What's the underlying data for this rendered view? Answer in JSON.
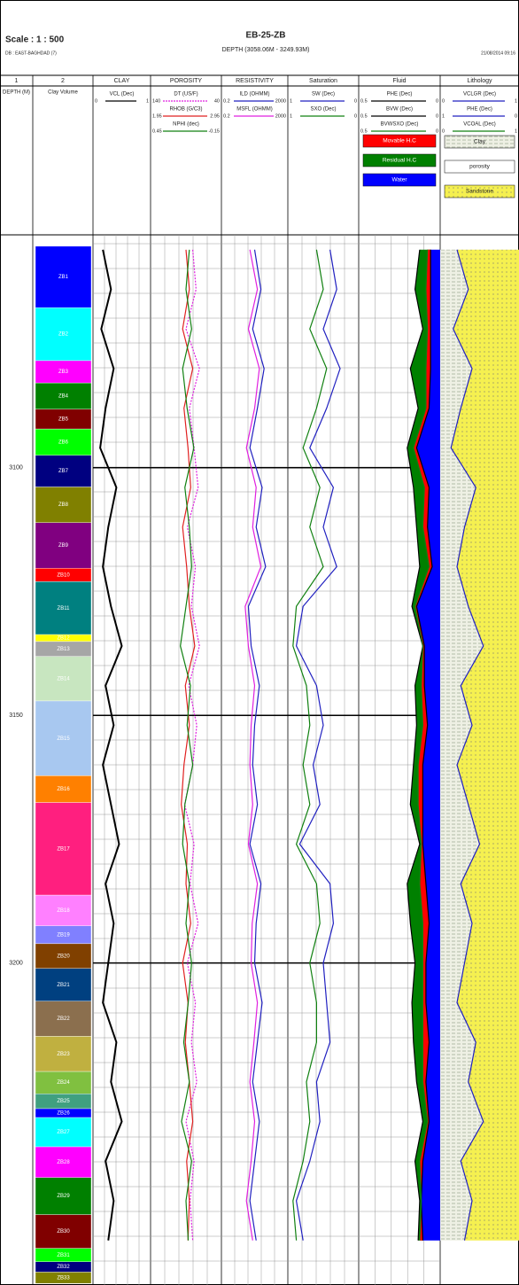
{
  "chart_data": {
    "type": "well-log",
    "scale": "Scale : 1 : 500",
    "title": "EB-25-ZB",
    "subtitle": "DEPTH (3058.06M - 3249.93M)",
    "database": "DB : EAST-BAGHDAD (7)",
    "date": "21/08/2014 09:16",
    "ylim": [
      3053,
      3265
    ],
    "yticks": [
      3100,
      3150,
      3200
    ],
    "depth": [
      3056,
      3064,
      3072,
      3080,
      3088,
      3096,
      3104,
      3112,
      3120,
      3128,
      3136,
      3144,
      3152,
      3160,
      3168,
      3176,
      3184,
      3192,
      3200,
      3208,
      3216,
      3224,
      3232,
      3240,
      3248,
      3256
    ],
    "zones": [
      {
        "name": "ZB1",
        "color": "#0000ff",
        "top": 3055.3,
        "base": 3067.7
      },
      {
        "name": "ZB2",
        "color": "#00ffff",
        "top": 3067.7,
        "base": 3078.4
      },
      {
        "name": "ZB3",
        "color": "#ff00ff",
        "top": 3078.4,
        "base": 3082.9
      },
      {
        "name": "ZB4",
        "color": "#008000",
        "top": 3082.9,
        "base": 3088.2
      },
      {
        "name": "ZB5",
        "color": "#800000",
        "top": 3088.2,
        "base": 3092.2
      },
      {
        "name": "ZB6",
        "color": "#00ff00",
        "top": 3092.2,
        "base": 3097.5
      },
      {
        "name": "ZB7",
        "color": "#000080",
        "top": 3097.5,
        "base": 3103.9
      },
      {
        "name": "ZB8",
        "color": "#808000",
        "top": 3103.9,
        "base": 3111.1
      },
      {
        "name": "ZB9",
        "color": "#800080",
        "top": 3111.1,
        "base": 3120.3
      },
      {
        "name": "ZB10",
        "color": "#ff0000",
        "top": 3120.3,
        "base": 3123.0
      },
      {
        "name": "ZB11",
        "color": "#008080",
        "top": 3123.0,
        "base": 3133.7
      },
      {
        "name": "ZB12",
        "color": "#ffff00",
        "top": 3133.7,
        "base": 3135.1
      },
      {
        "name": "ZB13",
        "color": "#a6a6a6",
        "top": 3135.1,
        "base": 3138.1
      },
      {
        "name": "ZB14",
        "color": "#c8e6c0",
        "top": 3138.1,
        "base": 3147.1
      },
      {
        "name": "ZB15",
        "color": "#a8c8f0",
        "top": 3147.1,
        "base": 3162.2
      },
      {
        "name": "ZB16",
        "color": "#ff8000",
        "top": 3162.2,
        "base": 3167.6
      },
      {
        "name": "ZB17",
        "color": "#ff1f7f",
        "top": 3167.6,
        "base": 3186.3
      },
      {
        "name": "ZB18",
        "color": "#ff80ff",
        "top": 3186.3,
        "base": 3192.5
      },
      {
        "name": "ZB19",
        "color": "#8080ff",
        "top": 3192.5,
        "base": 3196.1
      },
      {
        "name": "ZB20",
        "color": "#804000",
        "top": 3196.1,
        "base": 3201.1
      },
      {
        "name": "ZB21",
        "color": "#004080",
        "top": 3201.1,
        "base": 3207.7
      },
      {
        "name": "ZB22",
        "color": "#8b6f4e",
        "top": 3207.7,
        "base": 3214.8
      },
      {
        "name": "ZB23",
        "color": "#c0b040",
        "top": 3214.8,
        "base": 3221.9
      },
      {
        "name": "ZB24",
        "color": "#80c040",
        "top": 3221.9,
        "base": 3226.4
      },
      {
        "name": "ZB25",
        "color": "#40a080",
        "top": 3226.4,
        "base": 3229.4
      },
      {
        "name": "ZB26",
        "color": "#0000ff",
        "top": 3229.4,
        "base": 3231.2
      },
      {
        "name": "ZB27",
        "color": "#00ffff",
        "top": 3231.2,
        "base": 3237.1
      },
      {
        "name": "ZB28",
        "color": "#ff00ff",
        "top": 3237.1,
        "base": 3243.3
      },
      {
        "name": "ZB29",
        "color": "#008000",
        "top": 3243.3,
        "base": 3250.8
      },
      {
        "name": "ZB30",
        "color": "#800000",
        "top": 3250.8,
        "base": 3257.6
      },
      {
        "name": "ZB31",
        "color": "#00ff00",
        "top": 3257.6,
        "base": 3260.3
      },
      {
        "name": "ZB32",
        "color": "#000080",
        "top": 3260.3,
        "base": 3262.4
      },
      {
        "name": "ZB33",
        "color": "#808000",
        "top": 3262.4,
        "base": 3264.7
      }
    ],
    "tracks": [
      {
        "title": "1",
        "label": "DEPTH (M)"
      },
      {
        "title": "2",
        "label": "Clay Volume"
      },
      {
        "title": "CLAY",
        "curves": [
          {
            "name": "VCL (Dec)",
            "color": "#000000",
            "xlim": [
              0,
              1
            ],
            "values": [
              0.15,
              0.3,
              0.12,
              0.35,
              0.2,
              0.1,
              0.4,
              0.25,
              0.15,
              0.3,
              0.5,
              0.2,
              0.35,
              0.15,
              0.3,
              0.45,
              0.2,
              0.35,
              0.25,
              0.15,
              0.4,
              0.3,
              0.5,
              0.2,
              0.35,
              0.25
            ]
          }
        ]
      },
      {
        "title": "POROSITY",
        "curves": [
          {
            "name": "DT (US/F)",
            "color": "#e020e0",
            "dashed": true,
            "xlim": [
              140,
              40
            ],
            "values": [
              80,
              75,
              90,
              70,
              85,
              78,
              72,
              88,
              76,
              82,
              70,
              86,
              74,
              80,
              92,
              78,
              84,
              72,
              88,
              76,
              82,
              74,
              90,
              78,
              84,
              80
            ]
          },
          {
            "name": "RHOB (G/C3)",
            "color": "#e02020",
            "xlim": [
              1.95,
              2.95
            ],
            "values": [
              2.45,
              2.5,
              2.4,
              2.55,
              2.42,
              2.48,
              2.52,
              2.4,
              2.46,
              2.5,
              2.58,
              2.44,
              2.5,
              2.42,
              2.38,
              2.47,
              2.45,
              2.52,
              2.4,
              2.48,
              2.44,
              2.5,
              2.55,
              2.46,
              2.5,
              2.48
            ]
          },
          {
            "name": "NPHI (dec)",
            "color": "#108010",
            "xlim": [
              0.45,
              -0.15
            ],
            "values": [
              0.12,
              0.15,
              0.1,
              0.18,
              0.14,
              0.08,
              0.16,
              0.12,
              0.1,
              0.15,
              0.2,
              0.11,
              0.14,
              0.09,
              0.16,
              0.18,
              0.12,
              0.15,
              0.1,
              0.13,
              0.17,
              0.12,
              0.19,
              0.1,
              0.15,
              0.13
            ]
          }
        ]
      },
      {
        "title": "RESISTIVITY",
        "curves": [
          {
            "name": "ILD (OHMM)",
            "color": "#2020c0",
            "log": true,
            "xlim": [
              0.2,
              2000
            ],
            "values": [
              20,
              50,
              15,
              80,
              30,
              10,
              60,
              25,
              100,
              8,
              12,
              40,
              20,
              15,
              30,
              10,
              50,
              25,
              20,
              60,
              30,
              15,
              40,
              20,
              10,
              25
            ]
          },
          {
            "name": "MSFL (OHMM)",
            "color": "#e020e0",
            "log": true,
            "xlim": [
              0.2,
              2000
            ],
            "values": [
              10,
              30,
              8,
              40,
              20,
              6,
              25,
              15,
              50,
              5,
              8,
              20,
              12,
              10,
              15,
              8,
              30,
              14,
              12,
              30,
              18,
              10,
              20,
              12,
              6,
              15
            ]
          }
        ]
      },
      {
        "title": "Saturation",
        "curves": [
          {
            "name": "SW (Dec)",
            "color": "#2020c0",
            "xlim": [
              1,
              0
            ],
            "values": [
              0.4,
              0.3,
              0.5,
              0.25,
              0.45,
              0.7,
              0.35,
              0.5,
              0.3,
              0.8,
              0.9,
              0.6,
              0.5,
              0.65,
              0.55,
              0.85,
              0.4,
              0.35,
              0.5,
              0.45,
              0.4,
              0.6,
              0.55,
              0.7,
              0.9,
              0.8
            ]
          },
          {
            "name": "SXO (Dec)",
            "color": "#108010",
            "xlim": [
              1,
              0
            ],
            "values": [
              0.6,
              0.5,
              0.7,
              0.45,
              0.6,
              0.8,
              0.55,
              0.7,
              0.5,
              0.9,
              0.95,
              0.75,
              0.7,
              0.8,
              0.7,
              0.9,
              0.6,
              0.55,
              0.7,
              0.6,
              0.6,
              0.75,
              0.7,
              0.8,
              0.95,
              0.9
            ]
          }
        ]
      },
      {
        "title": "Fluid",
        "curves": [
          {
            "name": "PHE (Dec)",
            "color": "#000000",
            "xlim": [
              0.5,
              0
            ],
            "values": [
              0.12,
              0.15,
              0.1,
              0.18,
              0.13,
              0.2,
              0.16,
              0.14,
              0.12,
              0.17,
              0.1,
              0.15,
              0.14,
              0.16,
              0.18,
              0.12,
              0.2,
              0.18,
              0.15,
              0.17,
              0.16,
              0.14,
              0.1,
              0.15,
              0.12,
              0.13
            ]
          },
          {
            "name": "BVW (Dec)",
            "color": "#000000",
            "xlim": [
              0.5,
              0
            ],
            "values": [
              0.05,
              0.05,
              0.05,
              0.05,
              0.06,
              0.14,
              0.06,
              0.07,
              0.04,
              0.14,
              0.09,
              0.09,
              0.07,
              0.1,
              0.1,
              0.1,
              0.08,
              0.06,
              0.08,
              0.08,
              0.06,
              0.08,
              0.06,
              0.1,
              0.11,
              0.1
            ]
          },
          {
            "name": "BVWSXO (Dec)",
            "color": "#108010",
            "xlim": [
              0.5,
              0
            ],
            "values": [
              0.07,
              0.08,
              0.07,
              0.08,
              0.08,
              0.16,
              0.09,
              0.1,
              0.06,
              0.15,
              0.1,
              0.11,
              0.1,
              0.13,
              0.13,
              0.11,
              0.12,
              0.1,
              0.1,
              0.1,
              0.1,
              0.1,
              0.07,
              0.12,
              0.11,
              0.12
            ]
          }
        ],
        "legend": [
          {
            "name": "Movable H.C",
            "color": "#ff0000"
          },
          {
            "name": "Residual H.C",
            "color": "#008000"
          },
          {
            "name": "Water",
            "color": "#0000ff"
          }
        ]
      },
      {
        "title": "Lithology",
        "curves": [
          {
            "name": "VCLGR (Dec)",
            "color": "#2020c0",
            "xlim": [
              0,
              1
            ],
            "values": [
              0.2,
              0.35,
              0.15,
              0.4,
              0.25,
              0.12,
              0.45,
              0.3,
              0.2,
              0.35,
              0.55,
              0.25,
              0.4,
              0.2,
              0.35,
              0.5,
              0.25,
              0.4,
              0.3,
              0.2,
              0.45,
              0.35,
              0.55,
              0.25,
              0.4,
              0.3
            ]
          },
          {
            "name": "PHE (Dec)",
            "color": "#2020c0",
            "xlim": [
              1,
              0
            ]
          },
          {
            "name": "VCOAL (Dec)",
            "color": "#108010",
            "xlim": [
              0,
              1
            ]
          }
        ],
        "legend": [
          {
            "name": "Clay",
            "color": "#e8ecd8"
          },
          {
            "name": "porosity",
            "color": "#ffffff"
          },
          {
            "name": "Sandstone",
            "color": "#f5f050"
          }
        ]
      }
    ]
  }
}
